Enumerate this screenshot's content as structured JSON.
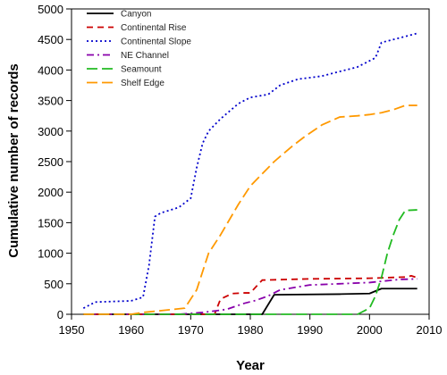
{
  "chart_data": {
    "type": "line",
    "title": "",
    "xlabel": "Year",
    "ylabel": "Cumulative number of records",
    "xlim": [
      1950,
      2010
    ],
    "ylim": [
      0,
      5000
    ],
    "xticks": [
      1950,
      1960,
      1970,
      1980,
      1990,
      2000,
      2010
    ],
    "yticks": [
      0,
      500,
      1000,
      1500,
      2000,
      2500,
      3000,
      3500,
      4000,
      4500,
      5000
    ],
    "grid": false,
    "legend_position": "top-left",
    "series": [
      {
        "name": "Canyon",
        "color": "#000000",
        "dash": "solid",
        "points": [
          [
            1952,
            0
          ],
          [
            1982,
            0
          ],
          [
            1984,
            320
          ],
          [
            1995,
            330
          ],
          [
            2000,
            340
          ],
          [
            2002,
            420
          ],
          [
            2008,
            420
          ]
        ]
      },
      {
        "name": "Continental Rise",
        "color": "#cc0000",
        "dash": "dashed",
        "points": [
          [
            1952,
            0
          ],
          [
            1974,
            0
          ],
          [
            1975,
            250
          ],
          [
            1977,
            340
          ],
          [
            1979,
            350
          ],
          [
            1980,
            350
          ],
          [
            1982,
            560
          ],
          [
            1990,
            580
          ],
          [
            2000,
            590
          ],
          [
            2006,
            610
          ],
          [
            2007,
            630
          ],
          [
            2008,
            600
          ]
        ]
      },
      {
        "name": "Continental Slope",
        "color": "#0000cc",
        "dash": "dotted",
        "points": [
          [
            1952,
            100
          ],
          [
            1954,
            200
          ],
          [
            1960,
            220
          ],
          [
            1962,
            280
          ],
          [
            1963,
            800
          ],
          [
            1964,
            1600
          ],
          [
            1965,
            1660
          ],
          [
            1968,
            1750
          ],
          [
            1970,
            1900
          ],
          [
            1971,
            2400
          ],
          [
            1972,
            2800
          ],
          [
            1973,
            3000
          ],
          [
            1975,
            3200
          ],
          [
            1978,
            3450
          ],
          [
            1980,
            3550
          ],
          [
            1983,
            3600
          ],
          [
            1985,
            3750
          ],
          [
            1988,
            3850
          ],
          [
            1992,
            3900
          ],
          [
            1996,
            4000
          ],
          [
            1998,
            4050
          ],
          [
            2000,
            4150
          ],
          [
            2001,
            4200
          ],
          [
            2002,
            4450
          ],
          [
            2004,
            4500
          ],
          [
            2006,
            4550
          ],
          [
            2008,
            4600
          ]
        ]
      },
      {
        "name": "NE Channel",
        "color": "#8800aa",
        "dash": "dashdot",
        "points": [
          [
            1952,
            0
          ],
          [
            1968,
            0
          ],
          [
            1972,
            30
          ],
          [
            1976,
            80
          ],
          [
            1979,
            180
          ],
          [
            1981,
            230
          ],
          [
            1983,
            300
          ],
          [
            1985,
            400
          ],
          [
            1990,
            480
          ],
          [
            1995,
            500
          ],
          [
            2000,
            520
          ],
          [
            2005,
            570
          ],
          [
            2008,
            580
          ]
        ]
      },
      {
        "name": "Seamount",
        "color": "#22bb22",
        "dash": "longdash",
        "points": [
          [
            1952,
            0
          ],
          [
            1998,
            0
          ],
          [
            2000,
            100
          ],
          [
            2001,
            300
          ],
          [
            2002,
            600
          ],
          [
            2003,
            1000
          ],
          [
            2004,
            1300
          ],
          [
            2005,
            1550
          ],
          [
            2006,
            1700
          ],
          [
            2008,
            1710
          ]
        ]
      },
      {
        "name": "Shelf Edge",
        "color": "#ff9900",
        "dash": "longdash",
        "points": [
          [
            1952,
            0
          ],
          [
            1960,
            0
          ],
          [
            1962,
            30
          ],
          [
            1964,
            50
          ],
          [
            1967,
            80
          ],
          [
            1969,
            100
          ],
          [
            1971,
            400
          ],
          [
            1972,
            700
          ],
          [
            1973,
            1000
          ],
          [
            1975,
            1300
          ],
          [
            1978,
            1800
          ],
          [
            1980,
            2100
          ],
          [
            1982,
            2300
          ],
          [
            1984,
            2500
          ],
          [
            1987,
            2750
          ],
          [
            1989,
            2900
          ],
          [
            1992,
            3100
          ],
          [
            1995,
            3230
          ],
          [
            1998,
            3250
          ],
          [
            2000,
            3270
          ],
          [
            2002,
            3300
          ],
          [
            2004,
            3350
          ],
          [
            2006,
            3420
          ],
          [
            2008,
            3420
          ]
        ]
      }
    ]
  }
}
